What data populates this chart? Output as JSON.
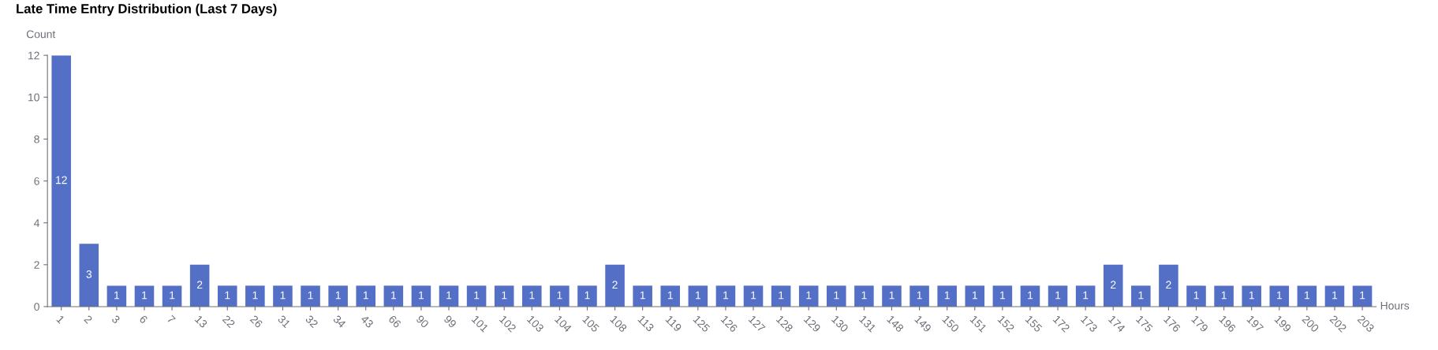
{
  "chart_data": {
    "type": "bar",
    "title": "Late Time Entry Distribution (Last 7 Days)",
    "xlabel": "Hours",
    "ylabel": "Count",
    "categories": [
      "1",
      "2",
      "3",
      "6",
      "7",
      "13",
      "22",
      "26",
      "31",
      "32",
      "34",
      "43",
      "66",
      "90",
      "99",
      "101",
      "102",
      "103",
      "104",
      "105",
      "108",
      "113",
      "119",
      "125",
      "126",
      "127",
      "128",
      "129",
      "130",
      "131",
      "148",
      "149",
      "150",
      "151",
      "152",
      "155",
      "172",
      "173",
      "174",
      "175",
      "176",
      "179",
      "196",
      "197",
      "199",
      "200",
      "202",
      "203"
    ],
    "values": [
      12,
      3,
      1,
      1,
      1,
      2,
      1,
      1,
      1,
      1,
      1,
      1,
      1,
      1,
      1,
      1,
      1,
      1,
      1,
      1,
      2,
      1,
      1,
      1,
      1,
      1,
      1,
      1,
      1,
      1,
      1,
      1,
      1,
      1,
      1,
      1,
      1,
      1,
      2,
      1,
      2,
      1,
      1,
      1,
      1,
      1,
      1,
      1
    ],
    "color": "#5470c6",
    "ylim": [
      0,
      12
    ],
    "yticks": [
      0,
      2,
      4,
      6,
      8,
      10,
      12
    ],
    "grid": false,
    "data_labels": true
  }
}
